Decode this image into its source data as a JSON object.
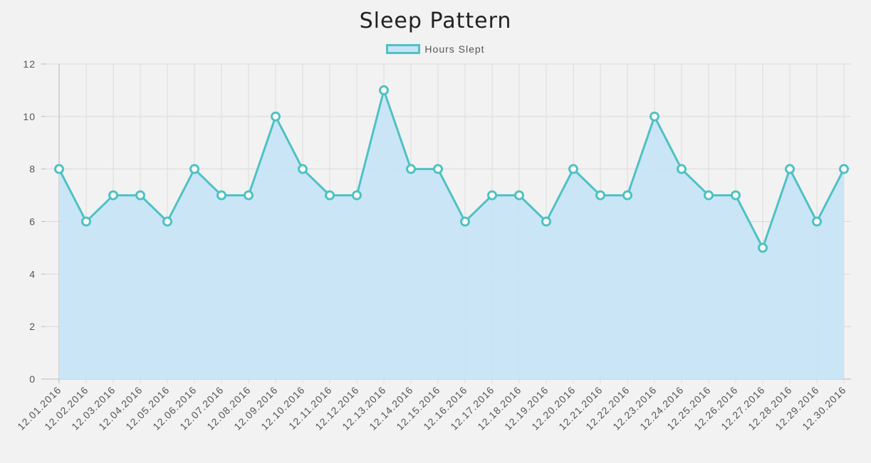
{
  "chart_data": {
    "type": "line",
    "title": "Sleep Pattern",
    "xlabel": "",
    "ylabel": "",
    "ylim": [
      0,
      12
    ],
    "yticks": [
      0,
      2,
      4,
      6,
      8,
      10,
      12
    ],
    "grid": true,
    "legend_position": "top-center",
    "categories": [
      "12.01.2016",
      "12.02.2016",
      "12.03.2016",
      "12.04.2016",
      "12.05.2016",
      "12.06.2016",
      "12.07.2016",
      "12.08.2016",
      "12.09.2016",
      "12.10.2016",
      "12.11.2016",
      "12.12.2016",
      "12.13.2016",
      "12.14.2016",
      "12.15.2016",
      "12.16.2016",
      "12.17.2016",
      "12.18.2016",
      "12.19.2016",
      "12.20.2016",
      "12.21.2016",
      "12.22.2016",
      "12.23.2016",
      "12.24.2016",
      "12.25.2016",
      "12.26.2016",
      "12.27.2016",
      "12.28.2016",
      "12.29.2016",
      "12.30.2016"
    ],
    "series": [
      {
        "name": "Hours Slept",
        "values": [
          8,
          6,
          7,
          7,
          6,
          8,
          7,
          7,
          10,
          8,
          7,
          7,
          11,
          8,
          8,
          6,
          7,
          7,
          6,
          8,
          7,
          7,
          10,
          8,
          7,
          7,
          5,
          8,
          6,
          8
        ],
        "line_color": "#4fc1c4",
        "fill_color": "#c7e4f6"
      }
    ]
  }
}
